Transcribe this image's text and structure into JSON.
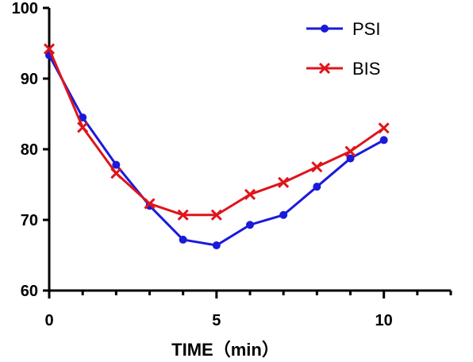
{
  "chart_data": {
    "type": "line",
    "title": "",
    "xlabel": "TIME（min）",
    "ylabel": "",
    "xlim": [
      0,
      12
    ],
    "ylim": [
      60,
      100
    ],
    "x_ticks": [
      0,
      5,
      10
    ],
    "x_minor_ticks": [
      1,
      2,
      3,
      4,
      6,
      7,
      8,
      9,
      11,
      12
    ],
    "y_ticks": [
      60,
      70,
      80,
      90,
      100
    ],
    "grid": false,
    "legend_position": "top-right",
    "series": [
      {
        "name": "PSI",
        "color": "#1a1adb",
        "marker": "circle",
        "x": [
          0,
          1,
          2,
          3,
          4,
          5,
          6,
          7,
          8,
          9,
          10
        ],
        "y": [
          93.3,
          84.5,
          77.8,
          72.0,
          67.2,
          66.4,
          69.3,
          70.7,
          74.7,
          78.7,
          81.3
        ]
      },
      {
        "name": "BIS",
        "color": "#e0141b",
        "marker": "x",
        "x": [
          0,
          1,
          2,
          3,
          4,
          5,
          6,
          7,
          8,
          9,
          10
        ],
        "y": [
          94.2,
          83.1,
          76.6,
          72.3,
          70.7,
          70.7,
          73.6,
          75.3,
          77.5,
          79.7,
          83.0
        ]
      }
    ]
  }
}
